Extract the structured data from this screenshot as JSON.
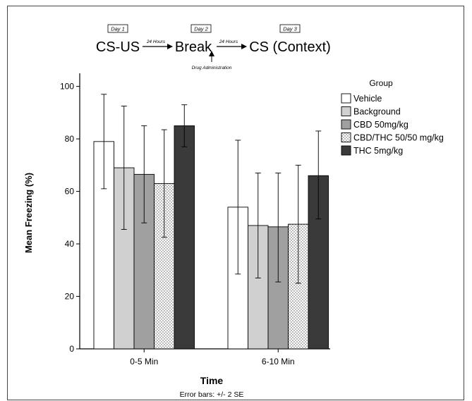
{
  "schematic": {
    "day_labels": [
      "Day 1",
      "Day 2",
      "Day 3"
    ],
    "stages": [
      "CS-US",
      "Break",
      "CS (Context)"
    ],
    "intervals": [
      "24 Hours",
      "24 Hours"
    ],
    "drug_note": "Drug Administration"
  },
  "chart_data": {
    "type": "bar",
    "title": "",
    "xlabel": "Time",
    "ylabel": "Mean Freezing (%)",
    "caption": "Error bars: +/- 2 SE",
    "ylim": [
      0,
      105
    ],
    "yticks": [
      0,
      20,
      40,
      60,
      80,
      100
    ],
    "categories": [
      "0-5 Min",
      "6-10 Min"
    ],
    "legend_title": "Group",
    "legend_position": "right",
    "series": [
      {
        "name": "Vehicle",
        "values": [
          79,
          54
        ],
        "err_low": [
          61,
          28.5
        ],
        "err_high": [
          97,
          79.5
        ],
        "fill": "#ffffff",
        "pattern": "none"
      },
      {
        "name": "Background",
        "values": [
          69,
          47
        ],
        "err_low": [
          45.5,
          27
        ],
        "err_high": [
          92.5,
          67
        ],
        "fill": "#d0d0d0",
        "pattern": "none"
      },
      {
        "name": "CBD 50mg/kg",
        "values": [
          66.5,
          46.5
        ],
        "err_low": [
          48,
          25.5
        ],
        "err_high": [
          85,
          67
        ],
        "fill": "#a0a0a0",
        "pattern": "none"
      },
      {
        "name": "CBD/THC 50/50 mg/kg",
        "values": [
          63,
          47.5
        ],
        "err_low": [
          42.5,
          25
        ],
        "err_high": [
          83.5,
          70
        ],
        "fill": "#ffffff",
        "pattern": "dots"
      },
      {
        "name": "THC 5mg/kg",
        "values": [
          85,
          66
        ],
        "err_low": [
          77,
          49.5
        ],
        "err_high": [
          93,
          83
        ],
        "fill": "#3a3a3a",
        "pattern": "none"
      }
    ]
  }
}
